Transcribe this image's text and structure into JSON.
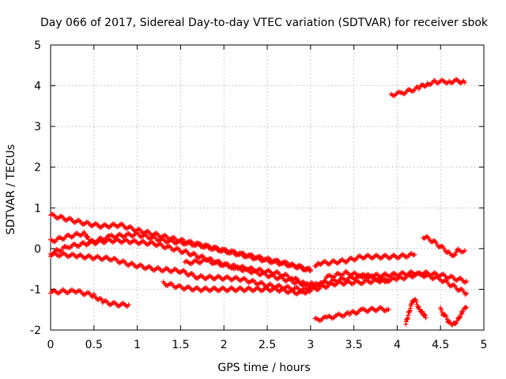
{
  "chart_data": {
    "type": "scatter",
    "title": "Day 066 of 2017, Sidereal Day-to-day VTEC variation (SDTVAR) for receiver sbok",
    "xlabel": "GPS time / hours",
    "ylabel": "SDTVAR / TECUs",
    "xlim": [
      0,
      5
    ],
    "ylim": [
      -2,
      5
    ],
    "x_ticks": [
      0,
      0.5,
      1,
      1.5,
      2,
      2.5,
      3,
      3.5,
      4,
      4.5,
      5
    ],
    "x_tick_labels": [
      "0",
      "0.5",
      "1",
      "1.5",
      "2",
      "2.5",
      "3",
      "3.5",
      "4",
      "4.5",
      "5"
    ],
    "y_ticks": [
      -2,
      -1,
      0,
      1,
      2,
      3,
      4,
      5
    ],
    "y_tick_labels": [
      "-2",
      "-1",
      "0",
      "1",
      "2",
      "3",
      "4",
      "5"
    ],
    "grid": true,
    "marker": "+",
    "color": "#ff0000",
    "series": [
      {
        "name": "trace-1",
        "points": [
          [
            0.0,
            0.82
          ],
          [
            0.2,
            0.72
          ],
          [
            0.4,
            0.62
          ],
          [
            0.6,
            0.55
          ],
          [
            0.8,
            0.58
          ],
          [
            1.0,
            0.45
          ],
          [
            1.3,
            0.3
          ],
          [
            1.6,
            0.15
          ],
          [
            2.0,
            -0.05
          ],
          [
            2.4,
            -0.22
          ],
          [
            2.8,
            -0.4
          ],
          [
            3.0,
            -0.55
          ]
        ]
      },
      {
        "name": "trace-2",
        "points": [
          [
            0.0,
            0.18
          ],
          [
            0.2,
            0.3
          ],
          [
            0.4,
            0.38
          ],
          [
            0.45,
            0.15
          ],
          [
            0.7,
            0.3
          ],
          [
            1.0,
            0.35
          ],
          [
            1.3,
            0.2
          ],
          [
            1.7,
            0.1
          ],
          [
            2.0,
            -0.05
          ],
          [
            2.4,
            -0.25
          ],
          [
            2.8,
            -0.42
          ],
          [
            3.0,
            -0.52
          ]
        ]
      },
      {
        "name": "trace-3",
        "points": [
          [
            0.0,
            -0.12
          ],
          [
            0.2,
            0.05
          ],
          [
            0.4,
            0.12
          ],
          [
            0.5,
            0.15
          ],
          [
            0.7,
            0.2
          ],
          [
            0.9,
            0.18
          ],
          [
            1.2,
            0.12
          ],
          [
            1.5,
            -0.05
          ],
          [
            1.8,
            -0.25
          ],
          [
            2.1,
            -0.45
          ],
          [
            2.4,
            -0.6
          ],
          [
            2.7,
            -0.75
          ],
          [
            3.0,
            -0.92
          ],
          [
            3.3,
            -0.78
          ],
          [
            3.6,
            -0.68
          ],
          [
            3.9,
            -0.65
          ],
          [
            4.2,
            -0.6
          ],
          [
            4.5,
            -0.75
          ],
          [
            4.8,
            -1.1
          ]
        ]
      },
      {
        "name": "trace-4",
        "points": [
          [
            0.0,
            -0.15
          ],
          [
            0.15,
            -0.15
          ],
          [
            0.3,
            -0.18
          ],
          [
            0.5,
            -0.22
          ],
          [
            0.7,
            -0.25
          ],
          [
            0.9,
            -0.38
          ],
          [
            1.2,
            -0.5
          ],
          [
            1.5,
            -0.55
          ],
          [
            1.7,
            -0.7
          ],
          [
            2.0,
            -0.72
          ],
          [
            2.2,
            -0.75
          ],
          [
            2.5,
            -0.9
          ],
          [
            2.8,
            -0.98
          ],
          [
            3.0,
            -1.02
          ],
          [
            3.3,
            -0.85
          ],
          [
            3.6,
            -0.82
          ],
          [
            4.0,
            -0.75
          ],
          [
            4.3,
            -0.6
          ],
          [
            4.5,
            -0.65
          ],
          [
            4.8,
            -0.8
          ]
        ]
      },
      {
        "name": "trace-5",
        "points": [
          [
            1.55,
            -0.35
          ],
          [
            1.8,
            -0.3
          ],
          [
            2.0,
            -0.4
          ],
          [
            2.3,
            -0.5
          ],
          [
            2.6,
            -0.6
          ],
          [
            2.8,
            -0.72
          ],
          [
            2.9,
            -0.85
          ],
          [
            3.1,
            -0.9
          ],
          [
            3.2,
            -0.7
          ],
          [
            3.4,
            -0.6
          ],
          [
            3.7,
            -0.7
          ],
          [
            3.9,
            -0.8
          ]
        ]
      },
      {
        "name": "trace-6",
        "points": [
          [
            1.3,
            -0.85
          ],
          [
            1.5,
            -0.95
          ],
          [
            1.7,
            -1.0
          ],
          [
            2.0,
            -1.0
          ],
          [
            2.3,
            -1.0
          ],
          [
            2.6,
            -1.0
          ],
          [
            2.9,
            -1.1
          ],
          [
            3.0,
            -1.0
          ]
        ]
      },
      {
        "name": "trace-7",
        "points": [
          [
            3.05,
            -0.4
          ],
          [
            3.1,
            -0.35
          ],
          [
            3.2,
            -0.35
          ],
          [
            3.4,
            -0.3
          ],
          [
            3.6,
            -0.2
          ],
          [
            3.8,
            -0.2
          ],
          [
            4.0,
            -0.2
          ],
          [
            4.2,
            -0.15
          ]
        ]
      },
      {
        "name": "trace-8",
        "points": [
          [
            0.0,
            -1.07
          ],
          [
            0.15,
            -1.05
          ],
          [
            0.3,
            -1.05
          ],
          [
            0.5,
            -1.15
          ],
          [
            0.6,
            -1.3
          ],
          [
            0.7,
            -1.35
          ],
          [
            0.8,
            -1.38
          ],
          [
            0.9,
            -1.38
          ]
        ]
      },
      {
        "name": "trace-9",
        "points": [
          [
            3.05,
            -1.75
          ],
          [
            3.2,
            -1.7
          ],
          [
            3.3,
            -1.65
          ],
          [
            3.45,
            -1.6
          ],
          [
            3.6,
            -1.52
          ],
          [
            3.8,
            -1.48
          ],
          [
            3.9,
            -1.5
          ]
        ]
      },
      {
        "name": "trace-10",
        "points": [
          [
            3.93,
            3.78
          ],
          [
            4.05,
            3.82
          ],
          [
            4.15,
            3.88
          ],
          [
            4.25,
            3.95
          ],
          [
            4.35,
            4.05
          ],
          [
            4.45,
            4.1
          ],
          [
            4.6,
            4.1
          ],
          [
            4.7,
            4.12
          ],
          [
            4.78,
            4.08
          ]
        ]
      },
      {
        "name": "trace-11",
        "points": [
          [
            4.3,
            0.3
          ],
          [
            4.4,
            0.2
          ],
          [
            4.5,
            0.05
          ],
          [
            4.6,
            -0.1
          ],
          [
            4.65,
            -0.15
          ],
          [
            4.7,
            -0.05
          ],
          [
            4.78,
            -0.05
          ]
        ]
      },
      {
        "name": "trace-12",
        "points": [
          [
            4.1,
            -1.85
          ],
          [
            4.13,
            -1.6
          ],
          [
            4.17,
            -1.35
          ],
          [
            4.2,
            -1.25
          ],
          [
            4.25,
            -1.45
          ],
          [
            4.3,
            -1.6
          ],
          [
            4.33,
            -1.7
          ]
        ]
      },
      {
        "name": "trace-13",
        "points": [
          [
            4.5,
            -1.5
          ],
          [
            4.55,
            -1.65
          ],
          [
            4.6,
            -1.8
          ],
          [
            4.65,
            -1.85
          ],
          [
            4.7,
            -1.75
          ],
          [
            4.75,
            -1.55
          ],
          [
            4.8,
            -1.45
          ]
        ]
      }
    ]
  }
}
